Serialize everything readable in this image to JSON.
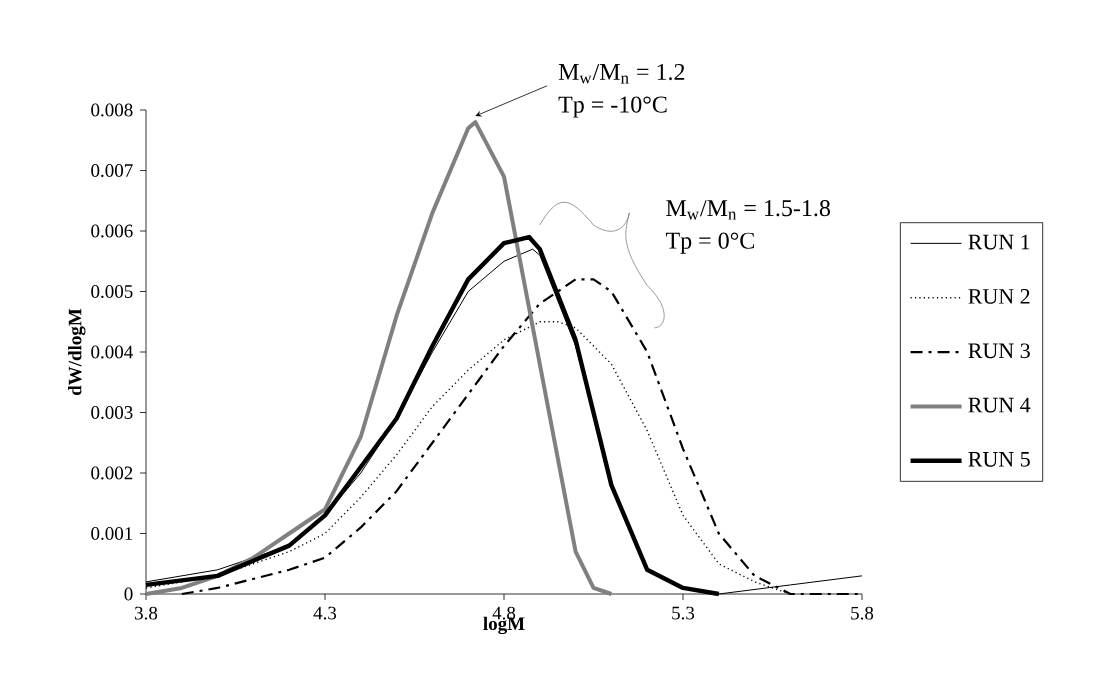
{
  "chart_data": {
    "type": "line",
    "xlabel": "logM",
    "ylabel": "dW/dlogM",
    "xlim": [
      3.8,
      5.8
    ],
    "xticks": [
      3.8,
      4.3,
      4.8,
      5.3,
      5.8
    ],
    "ylim": [
      0,
      0.008
    ],
    "yticks": [
      0,
      0.001,
      0.002,
      0.003,
      0.004,
      0.005,
      0.006,
      0.007,
      0.008
    ],
    "legend": "right",
    "grid": false,
    "annotations": [
      {
        "text": "M$_{w}$/M$_{n}$ = 1.2",
        "x": 4.72,
        "y": 0.0078
      },
      "Tp = -10°C",
      "M$_{w}$/M$_{n}$ = 1.5-1.8",
      "Tp = 0°C"
    ],
    "series": [
      {
        "name": "RUN 1",
        "color": "#000000",
        "line_style": "solid",
        "x": [
          3.8,
          4.0,
          4.2,
          4.3,
          4.4,
          4.5,
          4.6,
          4.7,
          4.8,
          4.88,
          4.9,
          5.0,
          5.1,
          5.2,
          5.3,
          5.4,
          5.6,
          5.8
        ],
        "values": [
          0.0002,
          0.0004,
          0.0008,
          0.0013,
          0.002,
          0.0029,
          0.004,
          0.005,
          0.0055,
          0.0057,
          0.0056,
          0.0041,
          0.0018,
          0.0004,
          0.0001,
          0.0,
          0.00015,
          0.0003
        ]
      },
      {
        "name": "RUN 2",
        "color": "#000000",
        "line_style": "dotted",
        "x": [
          3.8,
          4.0,
          4.2,
          4.3,
          4.4,
          4.5,
          4.6,
          4.7,
          4.8,
          4.9,
          4.95,
          5.0,
          5.1,
          5.2,
          5.3,
          5.4,
          5.5,
          5.6
        ],
        "values": [
          0.0001,
          0.0003,
          0.0007,
          0.001,
          0.0016,
          0.0023,
          0.0031,
          0.0037,
          0.0042,
          0.0045,
          0.0045,
          0.0044,
          0.0038,
          0.0027,
          0.0013,
          0.0005,
          0.0002,
          0.0
        ]
      },
      {
        "name": "RUN 3",
        "color": "#000000",
        "line_style": "dashed",
        "x": [
          3.9,
          4.0,
          4.2,
          4.3,
          4.4,
          4.5,
          4.6,
          4.7,
          4.8,
          4.9,
          5.0,
          5.05,
          5.1,
          5.2,
          5.3,
          5.4,
          5.5,
          5.6,
          5.8
        ],
        "values": [
          0.0,
          0.0001,
          0.0004,
          0.0006,
          0.0011,
          0.0017,
          0.0025,
          0.0033,
          0.0041,
          0.0048,
          0.0052,
          0.0052,
          0.005,
          0.004,
          0.0024,
          0.001,
          0.0003,
          0.0,
          0.0
        ]
      },
      {
        "name": "RUN 4",
        "color": "#808080",
        "line_style": "solid",
        "x": [
          3.8,
          3.9,
          4.0,
          4.1,
          4.2,
          4.3,
          4.4,
          4.5,
          4.6,
          4.7,
          4.72,
          4.8,
          4.9,
          5.0,
          5.05,
          5.1
        ],
        "values": [
          0.0,
          0.0001,
          0.0003,
          0.0006,
          0.001,
          0.0014,
          0.0026,
          0.0046,
          0.0063,
          0.0077,
          0.0078,
          0.0069,
          0.0038,
          0.0007,
          0.0001,
          0.0
        ]
      },
      {
        "name": "RUN 5",
        "color": "#000000",
        "line_style": "solid",
        "x": [
          3.8,
          4.0,
          4.2,
          4.3,
          4.4,
          4.5,
          4.6,
          4.7,
          4.8,
          4.87,
          4.9,
          5.0,
          5.1,
          5.2,
          5.3,
          5.4
        ],
        "values": [
          0.00015,
          0.0003,
          0.0008,
          0.0013,
          0.0021,
          0.0029,
          0.0041,
          0.0052,
          0.0058,
          0.0059,
          0.0057,
          0.0042,
          0.0018,
          0.0004,
          0.0001,
          0.0
        ]
      }
    ]
  }
}
